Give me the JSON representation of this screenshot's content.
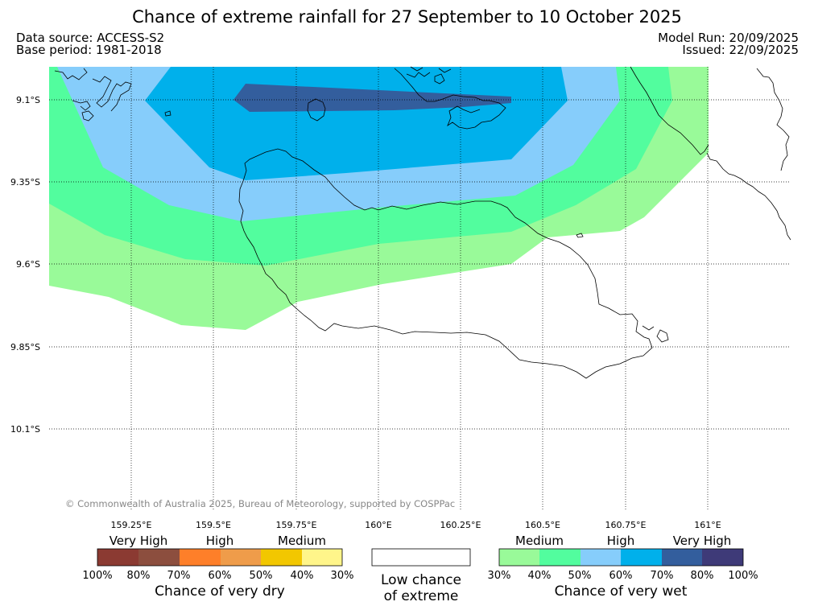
{
  "header": {
    "title": "Chance of extreme rainfall for 27 September to 10 October 2025",
    "data_source": "Data source: ACCESS-S2",
    "base_period": "Base period: 1981-2018",
    "model_run": "Model Run: 20/09/2025",
    "issued": "Issued: 22/09/2025"
  },
  "map": {
    "lat_labels": [
      "9.1°S",
      "9.35°S",
      "9.6°S",
      "9.85°S",
      "10.1°S"
    ],
    "lon_labels": [
      "159.25°E",
      "159.5°E",
      "159.75°E",
      "160°E",
      "160.25°E",
      "160.5°E",
      "160.75°E",
      "161°E"
    ],
    "credit": "© Commonwealth of Australia 2025, Bureau of Meteorology, supported by COSPPac",
    "zone_colors": {
      "wet_medium": "#99fa99",
      "wet_medium_high": "#52fd9e",
      "wet_high": "#86cdfb",
      "wet_high_strong": "#00b0eb",
      "wet_very_high": "#335e9d"
    }
  },
  "legend": {
    "dry": {
      "category_labels": [
        "Very High",
        "High",
        "Medium"
      ],
      "colors": [
        "#8b3a32",
        "#8c4e3e",
        "#fe7f29",
        "#ef9c4a",
        "#f2c700",
        "#fff58a"
      ],
      "tick_labels": [
        "100%",
        "80%",
        "70%",
        "60%",
        "50%",
        "40%",
        "30%"
      ],
      "caption": "Chance of very dry"
    },
    "neutral": {
      "caption_line1": "Low chance",
      "caption_line2": "of extreme"
    },
    "wet": {
      "category_labels": [
        "Medium",
        "High",
        "Very High"
      ],
      "colors": [
        "#99fa99",
        "#52fd9e",
        "#86cdfb",
        "#00b0eb",
        "#335e9d",
        "#3e3a78"
      ],
      "tick_labels": [
        "30%",
        "40%",
        "50%",
        "60%",
        "70%",
        "80%",
        "100%"
      ],
      "caption": "Chance of very wet"
    }
  }
}
